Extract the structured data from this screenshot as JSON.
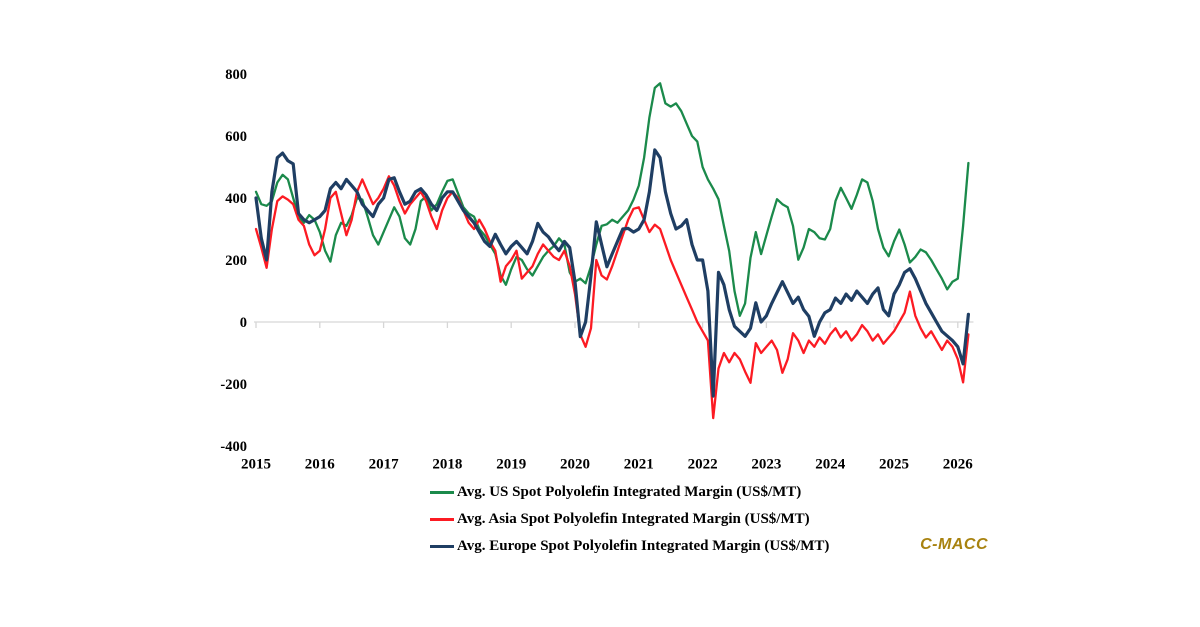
{
  "watermark": {
    "text": "C-MACC",
    "color": "#A8820F"
  },
  "chart_data": {
    "type": "line",
    "title": "",
    "xlabel": "",
    "ylabel": "",
    "x_start_year": 2015,
    "points_per_year": 12,
    "x_tick_years": [
      "2015",
      "2016",
      "2017",
      "2018",
      "2019",
      "2020",
      "2021",
      "2022",
      "2023",
      "2024",
      "2025",
      "2026"
    ],
    "y_ticks": [
      800,
      600,
      400,
      200,
      0,
      -200,
      -400
    ],
    "ylim": [
      -400,
      800
    ],
    "grid": "zero-line-only",
    "axis_color": "#D6D6D6",
    "legend_position": "bottom-center",
    "series": [
      {
        "name": "us",
        "label": "Avg. US Spot Polyolefin Integrated Margin (US$/MT)",
        "color": "#1B8A4B",
        "values": [
          420,
          380,
          375,
          390,
          450,
          475,
          460,
          400,
          340,
          320,
          345,
          330,
          290,
          230,
          195,
          280,
          320,
          310,
          345,
          400,
          395,
          340,
          280,
          250,
          290,
          330,
          370,
          340,
          270,
          250,
          300,
          390,
          405,
          360,
          380,
          420,
          455,
          460,
          415,
          370,
          350,
          340,
          300,
          280,
          250,
          220,
          150,
          120,
          170,
          210,
          200,
          170,
          150,
          180,
          210,
          230,
          245,
          270,
          250,
          160,
          130,
          140,
          125,
          180,
          250,
          310,
          315,
          330,
          320,
          340,
          360,
          395,
          440,
          530,
          660,
          755,
          770,
          705,
          695,
          705,
          680,
          640,
          600,
          582,
          500,
          460,
          430,
          396,
          310,
          229,
          100,
          20,
          60,
          207,
          290,
          219,
          280,
          340,
          396,
          380,
          370,
          310,
          201,
          240,
          300,
          290,
          270,
          266,
          300,
          390,
          433,
          400,
          365,
          410,
          460,
          450,
          390,
          300,
          240,
          212,
          260,
          298,
          250,
          192,
          210,
          234,
          225,
          200,
          170,
          140,
          105,
          130,
          140,
          310,
          513
        ]
      },
      {
        "name": "asia",
        "label": "Avg. Asia Spot Polyolefin Integrated Margin (US$/MT)",
        "color": "#FC1B23",
        "values": [
          300,
          240,
          175,
          300,
          390,
          405,
          395,
          380,
          330,
          310,
          250,
          215,
          230,
          300,
          400,
          420,
          350,
          280,
          330,
          420,
          460,
          420,
          380,
          400,
          430,
          470,
          440,
          390,
          350,
          380,
          400,
          420,
          390,
          340,
          300,
          360,
          400,
          420,
          400,
          360,
          320,
          300,
          330,
          300,
          260,
          230,
          130,
          180,
          200,
          230,
          140,
          160,
          180,
          220,
          250,
          230,
          210,
          200,
          230,
          180,
          90,
          -40,
          -80,
          -20,
          200,
          150,
          137,
          180,
          230,
          280,
          330,
          365,
          370,
          330,
          290,
          314,
          300,
          250,
          200,
          160,
          120,
          80,
          40,
          0,
          -30,
          -60,
          -310,
          -150,
          -100,
          -130,
          -100,
          -120,
          -160,
          -196,
          -68,
          -100,
          -80,
          -60,
          -90,
          -164,
          -120,
          -36,
          -60,
          -100,
          -60,
          -80,
          -50,
          -70,
          -40,
          -20,
          -50,
          -30,
          -60,
          -40,
          -10,
          -30,
          -60,
          -40,
          -70,
          -50,
          -30,
          0,
          30,
          98,
          20,
          -20,
          -50,
          -30,
          -60,
          -90,
          -60,
          -80,
          -120,
          -195,
          -40
        ]
      },
      {
        "name": "europe",
        "label": "Avg. Europe Spot Polyolefin Integrated Margin (US$/MT)",
        "color": "#1F3E63",
        "values": [
          400,
          270,
          200,
          420,
          530,
          545,
          520,
          510,
          350,
          330,
          320,
          330,
          340,
          360,
          430,
          450,
          430,
          460,
          440,
          420,
          380,
          360,
          340,
          380,
          400,
          460,
          465,
          420,
          380,
          390,
          420,
          430,
          410,
          380,
          360,
          400,
          420,
          420,
          390,
          360,
          340,
          320,
          290,
          260,
          244,
          283,
          250,
          220,
          244,
          260,
          240,
          220,
          260,
          318,
          290,
          275,
          250,
          230,
          260,
          240,
          130,
          -47,
          0,
          150,
          323,
          250,
          178,
          220,
          260,
          300,
          302,
          290,
          300,
          330,
          420,
          555,
          530,
          420,
          350,
          300,
          310,
          330,
          250,
          200,
          200,
          100,
          -239,
          160,
          120,
          40,
          -14,
          -30,
          -46,
          -20,
          62,
          0,
          20,
          60,
          95,
          130,
          95,
          60,
          80,
          40,
          18,
          -46,
          0,
          30,
          40,
          77,
          60,
          90,
          70,
          100,
          80,
          60,
          90,
          110,
          40,
          20,
          90,
          120,
          160,
          172,
          140,
          100,
          60,
          30,
          0,
          -30,
          -45,
          -60,
          -80,
          -135,
          25
        ]
      }
    ]
  }
}
